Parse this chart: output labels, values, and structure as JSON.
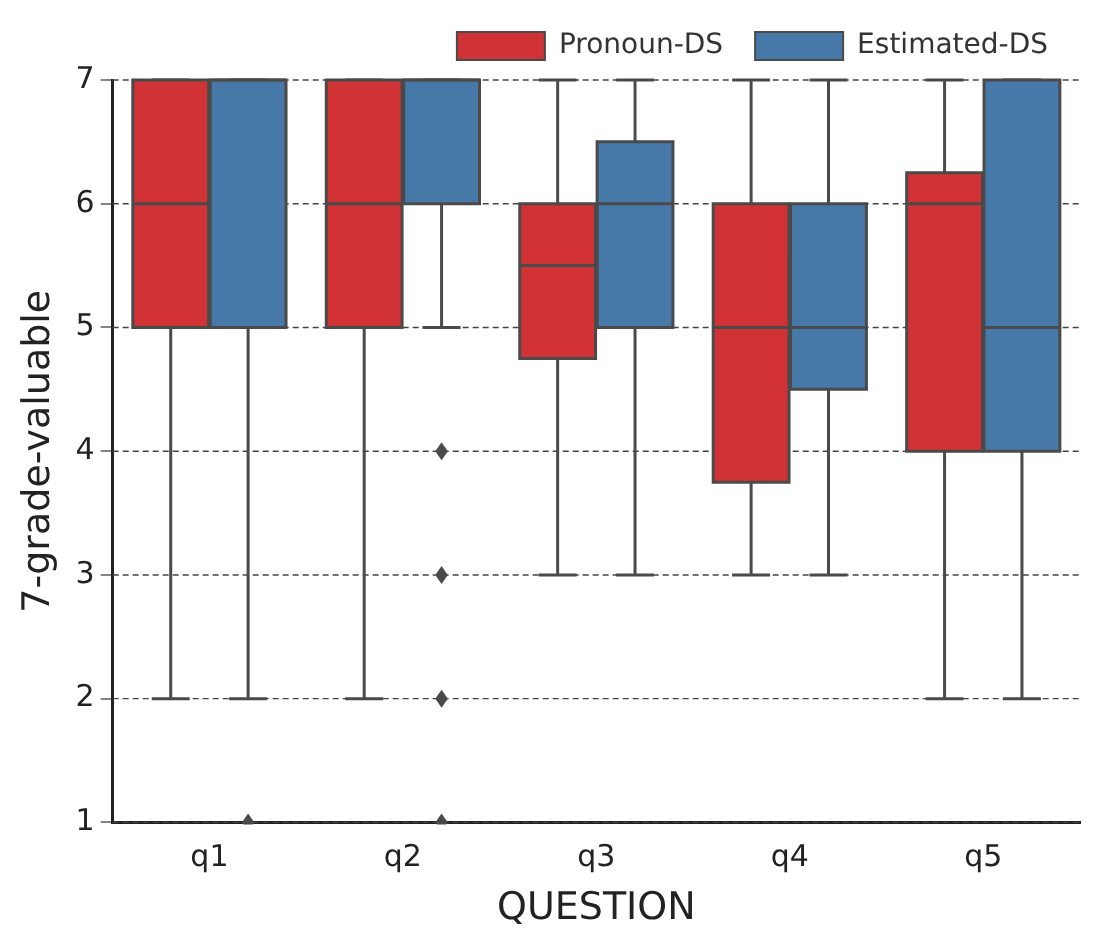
{
  "chart_data": {
    "type": "box",
    "xlabel": "QUESTION",
    "ylabel": "7-grade-valuable",
    "categories": [
      "q1",
      "q2",
      "q3",
      "q4",
      "q5"
    ],
    "ylim": [
      1,
      7
    ],
    "yticks": [
      1,
      2,
      3,
      4,
      5,
      6,
      7
    ],
    "grid": "y",
    "legend": "top right",
    "marker": "diamond",
    "series": [
      {
        "name": "Pronoun-DS",
        "color": "#d03236",
        "boxes": [
          {
            "low": 2,
            "q1": 5,
            "median": 6,
            "q3": 7,
            "high": 7
          },
          {
            "low": 2,
            "q1": 5,
            "median": 6,
            "q3": 7,
            "high": 7
          },
          {
            "low": 3,
            "q1": 4.75,
            "median": 5.5,
            "q3": 6,
            "high": 7
          },
          {
            "low": 3,
            "q1": 3.75,
            "median": 5,
            "q3": 6,
            "high": 7
          },
          {
            "low": 2,
            "q1": 4,
            "median": 6,
            "q3": 6.25,
            "high": 7
          }
        ]
      },
      {
        "name": "Estimated-DS",
        "color": "#4678a8",
        "boxes": [
          {
            "low": 2,
            "q1": 5,
            "median": 7,
            "q3": 7,
            "high": 7,
            "outliers": [
              1
            ]
          },
          {
            "low": 5,
            "q1": 6,
            "median": 7,
            "q3": 7,
            "high": 7,
            "outliers": [
              4,
              3,
              2,
              1
            ]
          },
          {
            "low": 3,
            "q1": 5,
            "median": 6,
            "q3": 6.5,
            "high": 7
          },
          {
            "low": 3,
            "q1": 4.5,
            "median": 5,
            "q3": 6,
            "high": 7
          },
          {
            "low": 2,
            "q1": 4,
            "median": 5,
            "q3": 7,
            "high": 7
          }
        ]
      }
    ]
  }
}
